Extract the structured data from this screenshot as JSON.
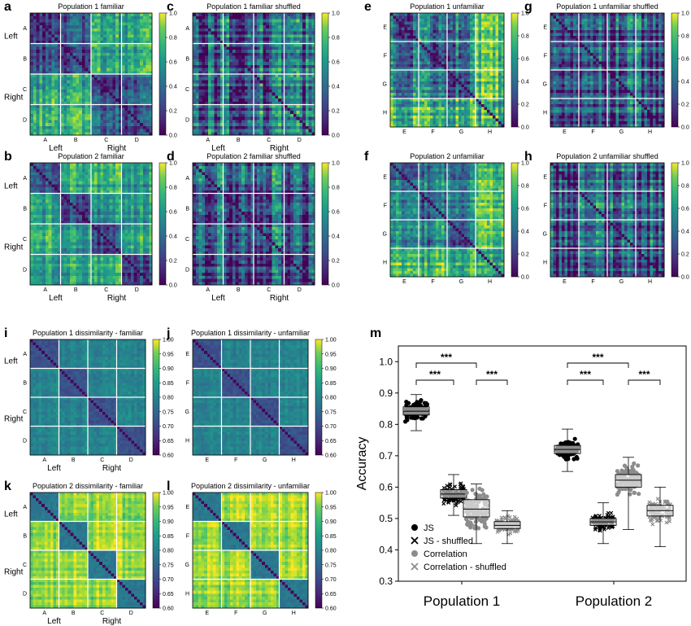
{
  "chart_data": [
    {
      "label": "a",
      "type": "heatmap",
      "title": "Population 1 familiar",
      "row_labels": [
        "A",
        "B",
        "C",
        "D"
      ],
      "col_labels": [
        "A",
        "B",
        "C",
        "D"
      ],
      "group_row": [
        "Left",
        "Right"
      ],
      "group_col": [
        "Left",
        "Right"
      ],
      "colorbar": {
        "min": 0.0,
        "max": 1.0,
        "ticks": [
          "0.0",
          "0.2",
          "0.4",
          "0.6",
          "0.8",
          "1.0"
        ]
      }
    },
    {
      "label": "c",
      "type": "heatmap",
      "title": "Population 1 familiar shuffled",
      "row_labels": [
        "A",
        "B",
        "C",
        "D"
      ],
      "col_labels": [
        "A",
        "B",
        "C",
        "D"
      ],
      "group_row": [],
      "group_col": [
        "Left",
        "Right"
      ],
      "colorbar": {
        "min": 0.0,
        "max": 1.0,
        "ticks": [
          "0.0",
          "0.2",
          "0.4",
          "0.6",
          "0.8",
          "1.0"
        ]
      }
    },
    {
      "label": "e",
      "type": "heatmap",
      "title": "Population 1 unfamiliar",
      "row_labels": [
        "E",
        "F",
        "G",
        "H"
      ],
      "col_labels": [
        "E",
        "F",
        "G",
        "H"
      ],
      "group_row": [],
      "group_col": [],
      "colorbar": {
        "min": 0.0,
        "max": 1.0,
        "ticks": [
          "0.0",
          "0.2",
          "0.4",
          "0.6",
          "0.8",
          "1.0"
        ]
      }
    },
    {
      "label": "g",
      "type": "heatmap",
      "title": "Population 1 unfamiliar shuffled",
      "row_labels": [
        "E",
        "F",
        "G",
        "H"
      ],
      "col_labels": [
        "E",
        "F",
        "G",
        "H"
      ],
      "group_row": [],
      "group_col": [],
      "colorbar": {
        "min": 0.0,
        "max": 1.0,
        "ticks": [
          "0.0",
          "0.2",
          "0.4",
          "0.6",
          "0.8",
          "1.0"
        ]
      }
    },
    {
      "label": "b",
      "type": "heatmap",
      "title": "Population 2 familiar",
      "row_labels": [
        "A",
        "B",
        "C",
        "D"
      ],
      "col_labels": [
        "A",
        "B",
        "C",
        "D"
      ],
      "group_row": [
        "Left",
        "Right"
      ],
      "group_col": [
        "Left",
        "Right"
      ],
      "colorbar": {
        "min": 0.0,
        "max": 1.0,
        "ticks": [
          "0.0",
          "0.2",
          "0.4",
          "0.6",
          "0.8",
          "1.0"
        ]
      }
    },
    {
      "label": "d",
      "type": "heatmap",
      "title": "Population 2 familiar shuffled",
      "row_labels": [
        "A",
        "B",
        "C",
        "D"
      ],
      "col_labels": [
        "A",
        "B",
        "C",
        "D"
      ],
      "group_row": [],
      "group_col": [
        "Left",
        "Right"
      ],
      "colorbar": {
        "min": 0.0,
        "max": 1.0,
        "ticks": [
          "0.0",
          "0.2",
          "0.4",
          "0.6",
          "0.8",
          "1.0"
        ]
      }
    },
    {
      "label": "f",
      "type": "heatmap",
      "title": "Population 2 unfamiliar",
      "row_labels": [
        "E",
        "F",
        "G",
        "H"
      ],
      "col_labels": [
        "E",
        "F",
        "G",
        "H"
      ],
      "group_row": [],
      "group_col": [],
      "colorbar": {
        "min": 0.0,
        "max": 1.0,
        "ticks": [
          "0.0",
          "0.2",
          "0.4",
          "0.6",
          "0.8",
          "1.0"
        ]
      }
    },
    {
      "label": "h",
      "type": "heatmap",
      "title": "Population 2 unfamiliar shuffled",
      "row_labels": [
        "E",
        "F",
        "G",
        "H"
      ],
      "col_labels": [
        "E",
        "F",
        "G",
        "H"
      ],
      "group_row": [],
      "group_col": [],
      "colorbar": {
        "min": 0.0,
        "max": 1.0,
        "ticks": [
          "0.0",
          "0.2",
          "0.4",
          "0.6",
          "0.8",
          "1.0"
        ]
      }
    },
    {
      "label": "i",
      "type": "heatmap",
      "title": "Population 1 dissimilarity - familiar",
      "row_labels": [
        "A",
        "B",
        "C",
        "D"
      ],
      "col_labels": [
        "A",
        "B",
        "C",
        "D"
      ],
      "group_row": [
        "Left",
        "Right"
      ],
      "group_col": [
        "Left",
        "Right"
      ],
      "colorbar": {
        "min": 0.6,
        "max": 1.0,
        "ticks": [
          "0.60",
          "0.65",
          "0.70",
          "0.75",
          "0.80",
          "0.85",
          "0.90",
          "0.95",
          "1.00"
        ]
      }
    },
    {
      "label": "j",
      "type": "heatmap",
      "title": "Population 1 dissimilarity - unfamiliar",
      "row_labels": [
        "E",
        "F",
        "G",
        "H"
      ],
      "col_labels": [
        "E",
        "F",
        "G",
        "H"
      ],
      "group_row": [],
      "group_col": [],
      "colorbar": {
        "min": 0.6,
        "max": 1.0,
        "ticks": [
          "0.60",
          "0.65",
          "0.70",
          "0.75",
          "0.80",
          "0.85",
          "0.90",
          "0.95",
          "1.00"
        ]
      }
    },
    {
      "label": "k",
      "type": "heatmap",
      "title": "Population 2 dissimilarity - familiar",
      "row_labels": [
        "A",
        "B",
        "C",
        "D"
      ],
      "col_labels": [
        "A",
        "B",
        "C",
        "D"
      ],
      "group_row": [
        "Left",
        "Right"
      ],
      "group_col": [
        "Left",
        "Right"
      ],
      "colorbar": {
        "min": 0.6,
        "max": 1.0,
        "ticks": [
          "0.60",
          "0.65",
          "0.70",
          "0.75",
          "0.80",
          "0.85",
          "0.90",
          "0.95",
          "1.00"
        ]
      }
    },
    {
      "label": "l",
      "type": "heatmap",
      "title": "Population 2 dissimilarity - unfamiliar",
      "row_labels": [
        "E",
        "F",
        "G",
        "H"
      ],
      "col_labels": [
        "E",
        "F",
        "G",
        "H"
      ],
      "group_row": [],
      "group_col": [],
      "colorbar": {
        "min": 0.6,
        "max": 1.0,
        "ticks": [
          "0.60",
          "0.65",
          "0.70",
          "0.75",
          "0.80",
          "0.85",
          "0.90",
          "0.95",
          "1.00"
        ]
      }
    },
    {
      "label": "m",
      "type": "boxplot",
      "ylabel": "Accuracy",
      "ylim": [
        0.3,
        1.05
      ],
      "yticks": [
        "0.3",
        "0.4",
        "0.5",
        "0.6",
        "0.7",
        "0.8",
        "0.9",
        "1.0"
      ],
      "categories": [
        "Population 1",
        "Population 2"
      ],
      "series": [
        {
          "name": "JS",
          "marker": "dot",
          "color": "#000000",
          "boxes": [
            {
              "q1": 0.83,
              "median": 0.842,
              "q3": 0.856,
              "lo": 0.78,
              "hi": 0.895
            },
            {
              "q1": 0.707,
              "median": 0.72,
              "q3": 0.733,
              "lo": 0.65,
              "hi": 0.785
            }
          ]
        },
        {
          "name": "JS - shuffled",
          "marker": "x",
          "color": "#000000",
          "boxes": [
            {
              "q1": 0.565,
              "median": 0.578,
              "q3": 0.592,
              "lo": 0.51,
              "hi": 0.64
            },
            {
              "q1": 0.478,
              "median": 0.489,
              "q3": 0.5,
              "lo": 0.42,
              "hi": 0.55
            }
          ]
        },
        {
          "name": "Correlation",
          "marker": "dot",
          "color": "#8c8c8c",
          "boxes": [
            {
              "q1": 0.505,
              "median": 0.53,
              "q3": 0.56,
              "lo": 0.42,
              "hi": 0.61
            },
            {
              "q1": 0.6,
              "median": 0.622,
              "q3": 0.64,
              "lo": 0.465,
              "hi": 0.695
            }
          ]
        },
        {
          "name": "Correlation - shuffled",
          "marker": "x",
          "color": "#8c8c8c",
          "boxes": [
            {
              "q1": 0.468,
              "median": 0.478,
              "q3": 0.49,
              "lo": 0.42,
              "hi": 0.525
            },
            {
              "q1": 0.508,
              "median": 0.525,
              "q3": 0.542,
              "lo": 0.41,
              "hi": 0.6
            }
          ]
        }
      ],
      "significance": [
        "***",
        "***",
        "***",
        "***",
        "***",
        "***"
      ]
    }
  ]
}
